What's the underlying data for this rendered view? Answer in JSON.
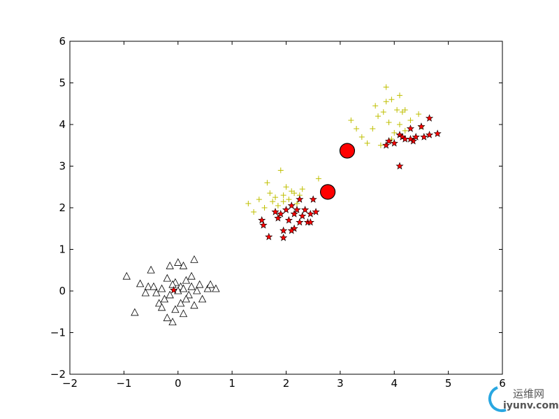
{
  "chart_data": {
    "type": "scatter",
    "xlim": [
      -2,
      6
    ],
    "ylim": [
      -2,
      6
    ],
    "xticks": [
      {
        "value": -2,
        "label": "−2"
      },
      {
        "value": -1,
        "label": "−1"
      },
      0,
      1,
      2,
      3,
      4,
      5,
      6
    ],
    "yticks": [
      {
        "value": -2,
        "label": "−2"
      },
      {
        "value": -1,
        "label": "−1"
      },
      0,
      1,
      2,
      3,
      4,
      5,
      6
    ],
    "series": [
      {
        "marker": "triangle",
        "color": "#ffffff",
        "x": [
          -0.95,
          -0.8,
          -0.7,
          -0.5,
          -0.55,
          -0.45,
          -0.4,
          -0.35,
          -0.3,
          -0.25,
          -0.2,
          -0.15,
          -0.15,
          -0.1,
          -0.2,
          -0.05,
          0,
          0.05,
          0.05,
          0.1,
          0.1,
          0.15,
          0.2,
          0.25,
          0.3,
          0.3,
          0.35,
          0.4,
          0.45,
          0.55,
          0.6,
          0.7,
          -0.6,
          -0.05,
          0.15,
          0.25,
          -0.3,
          0,
          0.1,
          -0.1
        ],
        "values": [
          0.35,
          -0.52,
          0.17,
          0.5,
          0.1,
          0.1,
          -0.05,
          -0.3,
          -0.4,
          -0.2,
          0.3,
          0.6,
          -0.1,
          -0.75,
          -0.65,
          0.2,
          0.68,
          0.1,
          -0.3,
          0.6,
          -0.55,
          0.25,
          -0.1,
          0.1,
          0.75,
          -0.35,
          0,
          0.15,
          -0.2,
          0.05,
          0.15,
          0.05,
          -0.05,
          -0.45,
          -0.2,
          0.35,
          0.05,
          0,
          0.05,
          0.15
        ]
      },
      {
        "marker": "plus",
        "color": "#bfbf00",
        "x": [
          1.3,
          1.4,
          1.5,
          1.65,
          1.7,
          1.8,
          1.9,
          1.95,
          2.0,
          2.05,
          2.1,
          2.2,
          2.3,
          2.25,
          2.6,
          1.85,
          1.75,
          2.15,
          1.6,
          1.95,
          3.2,
          3.3,
          3.5,
          3.6,
          3.65,
          3.7,
          3.75,
          3.8,
          3.85,
          3.9,
          3.95,
          4.0,
          4.05,
          4.1,
          4.15,
          4.2,
          4.3,
          4.45,
          4.5,
          4.1,
          3.95,
          3.85,
          4.2,
          3.4
        ],
        "values": [
          2.1,
          1.9,
          2.2,
          2.6,
          2.35,
          2.25,
          2.9,
          2.3,
          2.5,
          2.2,
          2.4,
          2.1,
          2.45,
          2.3,
          2.7,
          2.05,
          2.15,
          2.35,
          2.0,
          2.15,
          4.1,
          3.9,
          3.55,
          3.9,
          4.45,
          4.2,
          3.5,
          4.3,
          4.9,
          4.05,
          4.6,
          3.8,
          4.35,
          4.0,
          4.3,
          3.85,
          4.1,
          4.25,
          3.95,
          4.7,
          3.65,
          4.55,
          4.35,
          3.7
        ]
      },
      {
        "marker": "star",
        "color": "#ff0000",
        "x": [
          1.55,
          1.58,
          1.68,
          1.8,
          1.85,
          1.95,
          1.95,
          2.0,
          2.05,
          2.1,
          2.15,
          2.15,
          2.2,
          2.25,
          2.25,
          2.3,
          2.35,
          2.4,
          2.45,
          2.5,
          2.55,
          2.45,
          2.1,
          1.9,
          3.85,
          3.9,
          4.0,
          4.1,
          4.1,
          4.15,
          4.2,
          4.3,
          4.35,
          4.4,
          4.5,
          4.55,
          4.65,
          4.65,
          4.8,
          4.3,
          -0.08
        ],
        "values": [
          1.7,
          1.58,
          1.3,
          1.9,
          1.75,
          1.28,
          1.45,
          1.95,
          1.7,
          2.05,
          1.85,
          1.5,
          1.95,
          1.65,
          2.2,
          1.8,
          1.95,
          1.65,
          1.65,
          2.2,
          1.9,
          1.85,
          1.45,
          1.85,
          3.5,
          3.6,
          3.55,
          3.0,
          3.75,
          3.7,
          3.65,
          3.9,
          3.6,
          3.7,
          3.95,
          3.7,
          4.15,
          3.75,
          3.78,
          3.65,
          0.02
        ]
      },
      {
        "marker": "circle",
        "color": "#ff0000",
        "x": [
          2.77,
          3.13
        ],
        "values": [
          2.38,
          3.37
        ]
      }
    ]
  },
  "watermark": {
    "name": "运维网",
    "site": "iyunv.com"
  }
}
